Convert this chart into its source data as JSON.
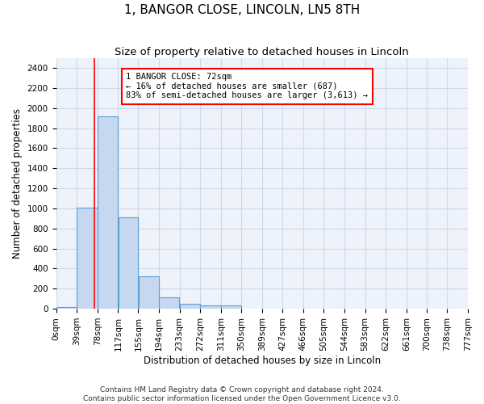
{
  "title": "1, BANGOR CLOSE, LINCOLN, LN5 8TH",
  "subtitle": "Size of property relative to detached houses in Lincoln",
  "xlabel": "Distribution of detached houses by size in Lincoln",
  "ylabel": "Number of detached properties",
  "bin_edges": [
    0,
    39,
    78,
    117,
    155,
    194,
    233,
    272,
    311,
    350,
    389,
    427,
    466,
    505,
    544,
    583,
    622,
    661,
    700,
    738,
    777
  ],
  "bar_heights": [
    20,
    1010,
    1920,
    910,
    320,
    110,
    50,
    30,
    30,
    0,
    0,
    0,
    0,
    0,
    0,
    0,
    0,
    0,
    0,
    0
  ],
  "bar_color": "#c5d8f0",
  "bar_edge_color": "#5a9fd4",
  "ylim": [
    0,
    2500
  ],
  "yticks": [
    0,
    200,
    400,
    600,
    800,
    1000,
    1200,
    1400,
    1600,
    1800,
    2000,
    2200,
    2400
  ],
  "red_line_x": 72,
  "annotation_text": "1 BANGOR CLOSE: 72sqm\n← 16% of detached houses are smaller (687)\n83% of semi-detached houses are larger (3,613) →",
  "footer_line1": "Contains HM Land Registry data © Crown copyright and database right 2024.",
  "footer_line2": "Contains public sector information licensed under the Open Government Licence v3.0.",
  "background_color": "#edf2fb",
  "grid_color": "#d0d8e8",
  "title_fontsize": 11,
  "subtitle_fontsize": 9.5,
  "axis_label_fontsize": 8.5,
  "tick_fontsize": 7.5,
  "footer_fontsize": 6.5
}
